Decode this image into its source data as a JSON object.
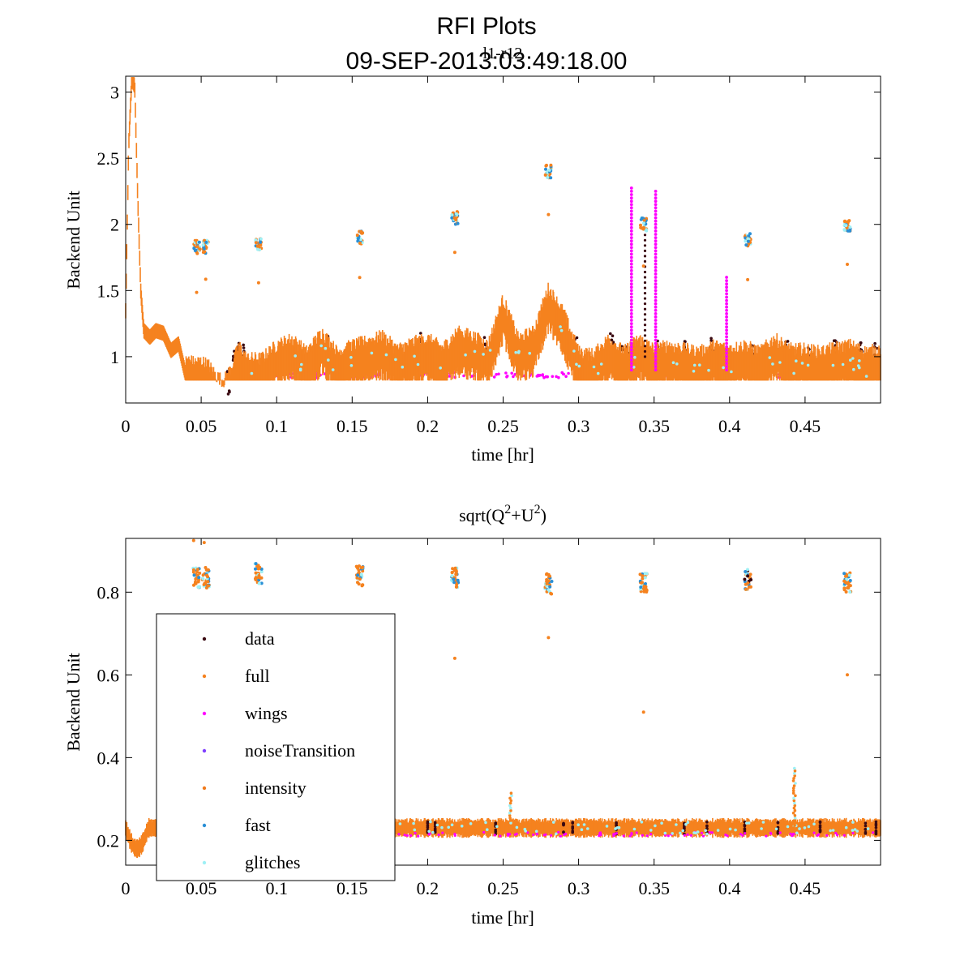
{
  "figure": {
    "title": "RFI Plots",
    "subtitle": "09-SEP-2013:03:49:18.00",
    "overlay_label": "l1-r12"
  },
  "colors": {
    "data": "#3a0a12",
    "full": "#f5821f",
    "wings": "#ff00ff",
    "noiseTransition": "#7f3fff",
    "intensity": "#f07a1c",
    "fast": "#2a8fd6",
    "glitches": "#9ff0f5",
    "axis": "#000000"
  },
  "legend": {
    "entries": [
      "data",
      "full",
      "wings",
      "noiseTransition",
      "intensity",
      "fast",
      "glitches"
    ]
  },
  "chart_data": [
    {
      "type": "scatter",
      "title": "",
      "xlabel": "time [hr]",
      "ylabel": "Backend Unit",
      "xlim": [
        0,
        0.5
      ],
      "ylim": [
        0.65,
        3.12
      ],
      "xticks": [
        0,
        0.05,
        0.1,
        0.15,
        0.2,
        0.25,
        0.3,
        0.35,
        0.4,
        0.45
      ],
      "xtick_labels": [
        "0",
        "0.05",
        "0.1",
        "0.15",
        "0.2",
        "0.25",
        "0.3",
        "0.35",
        "0.4",
        "0.45"
      ],
      "yticks": [
        1,
        1.5,
        2,
        2.5,
        3
      ],
      "ytick_labels": [
        "1",
        "1.5",
        "2",
        "2.5",
        "3"
      ],
      "baseline_trace": {
        "x": [
          0,
          0.002,
          0.004,
          0.006,
          0.008,
          0.01,
          0.012,
          0.016,
          0.02,
          0.025,
          0.03,
          0.035,
          0.04,
          0.045,
          0.05,
          0.055,
          0.06,
          0.065,
          0.07,
          0.075,
          0.08,
          0.09,
          0.1,
          0.11,
          0.12,
          0.13,
          0.14,
          0.15,
          0.16,
          0.17,
          0.18,
          0.19,
          0.2,
          0.21,
          0.22,
          0.23,
          0.24,
          0.25,
          0.26,
          0.27,
          0.28,
          0.29,
          0.3,
          0.31,
          0.32,
          0.33,
          0.34,
          0.35,
          0.36,
          0.37,
          0.38,
          0.39,
          0.4,
          0.41,
          0.42,
          0.43,
          0.44,
          0.45,
          0.46,
          0.47,
          0.48,
          0.49,
          0.5
        ],
        "y": [
          1.35,
          2.6,
          3.1,
          3.05,
          2.2,
          1.5,
          1.2,
          1.15,
          1.2,
          1.18,
          1.05,
          1.1,
          0.85,
          0.82,
          0.83,
          0.8,
          0.72,
          0.68,
          0.78,
          0.95,
          0.85,
          0.85,
          0.95,
          1.0,
          0.9,
          1.05,
          0.9,
          0.95,
          0.98,
          1.02,
          0.92,
          0.97,
          1.0,
          0.93,
          1.05,
          1.02,
          0.95,
          1.3,
          1.0,
          1.05,
          1.38,
          1.2,
          0.9,
          0.88,
          1.0,
          0.9,
          1.0,
          0.92,
          0.95,
          0.92,
          0.9,
          0.95,
          0.92,
          0.95,
          0.9,
          1.0,
          0.92,
          0.92,
          0.9,
          0.93,
          0.95,
          0.9,
          0.92
        ]
      },
      "calibration_bursts": {
        "x": [
          0.047,
          0.053,
          0.088,
          0.155,
          0.218,
          0.28,
          0.343,
          0.412,
          0.478
        ],
        "y": [
          1.83,
          1.83,
          1.85,
          1.9,
          2.05,
          2.4,
          2.0,
          1.88,
          2.0
        ]
      },
      "wings_spikes": {
        "x": [
          0.335,
          0.351,
          0.398
        ],
        "ymax": [
          2.28,
          2.26,
          1.62
        ]
      }
    },
    {
      "type": "scatter",
      "title": "sqrt(Q2+U2)",
      "title_base": "sqrt(Q",
      "title_sup1": "2",
      "title_mid": "+U",
      "title_sup2": "2",
      "title_end": ")",
      "xlabel": "time [hr]",
      "ylabel": "Backend Unit",
      "xlim": [
        0,
        0.5
      ],
      "ylim": [
        0.14,
        0.93
      ],
      "xticks": [
        0,
        0.05,
        0.1,
        0.15,
        0.2,
        0.25,
        0.3,
        0.35,
        0.4,
        0.45
      ],
      "xtick_labels": [
        "0",
        "0.05",
        "0.1",
        "0.15",
        "0.2",
        "0.25",
        "0.3",
        "0.35",
        "0.4",
        "0.45"
      ],
      "yticks": [
        0.2,
        0.4,
        0.6,
        0.8
      ],
      "ytick_labels": [
        "0.2",
        "0.4",
        "0.6",
        "0.8"
      ],
      "baseline_level": 0.23,
      "calibration_bursts": {
        "x": [
          0.047,
          0.053,
          0.088,
          0.155,
          0.218,
          0.28,
          0.343,
          0.412,
          0.478
        ],
        "y": [
          0.835,
          0.835,
          0.845,
          0.84,
          0.835,
          0.82,
          0.825,
          0.83,
          0.825
        ]
      },
      "outliers": {
        "x": [
          0.045,
          0.052,
          0.218,
          0.28,
          0.343,
          0.478
        ],
        "y": [
          0.925,
          0.92,
          0.64,
          0.69,
          0.51,
          0.6
        ]
      },
      "spikes": {
        "x": [
          0.255,
          0.443
        ],
        "ymax": [
          0.32,
          0.38
        ]
      }
    }
  ]
}
